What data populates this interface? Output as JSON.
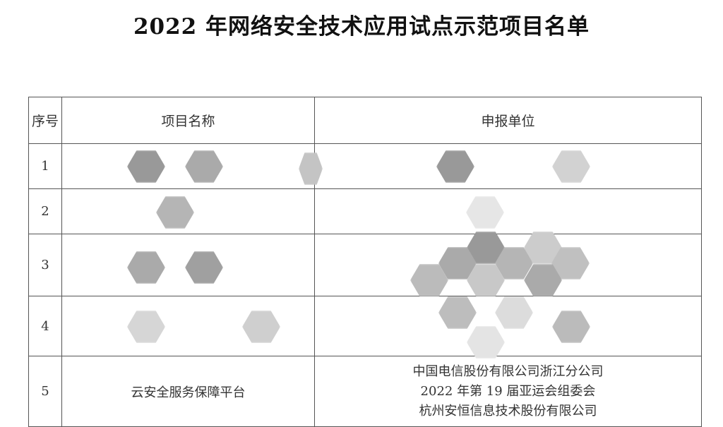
{
  "title": "2022 年网络安全技术应用试点示范项目名单",
  "table": {
    "headers": [
      "序号",
      "项目名称",
      "申报单位"
    ],
    "rows": [
      {
        "no": "1",
        "project": "",
        "units": []
      },
      {
        "no": "2",
        "project": "",
        "units": []
      },
      {
        "no": "3",
        "project": "",
        "units": []
      },
      {
        "no": "4",
        "project": "",
        "units": []
      },
      {
        "no": "5",
        "project": "云安全服务保障平台",
        "units": [
          "中国电信股份有限公司浙江分公司",
          "2022 年第 19 届亚运会组委会",
          "杭州安恒信息技术股份有限公司"
        ]
      }
    ]
  },
  "redaction_color": "#9a9a9a"
}
